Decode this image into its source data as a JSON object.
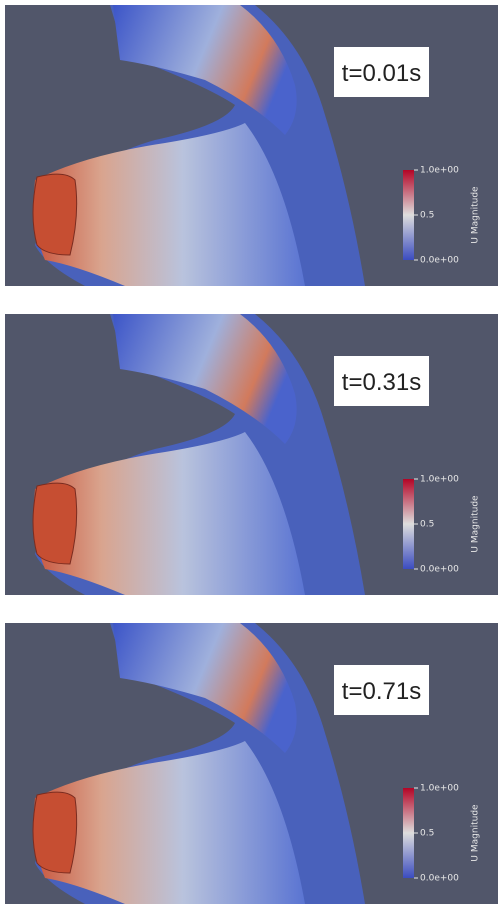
{
  "panels": [
    {
      "time_label": "t=0.01s",
      "colorbar": {
        "title": "U Magnitude",
        "ticks": [
          "1.0e+00",
          "0.5",
          "0.0e+00"
        ]
      }
    },
    {
      "time_label": "t=0.31s",
      "colorbar": {
        "title": "U Magnitude",
        "ticks": [
          "1.0e+00",
          "0.5",
          "0.0e+00"
        ]
      }
    },
    {
      "time_label": "t=0.71s",
      "colorbar": {
        "title": "U Magnitude",
        "ticks": [
          "1.0e+00",
          "0.5",
          "0.0e+00"
        ]
      }
    }
  ]
}
